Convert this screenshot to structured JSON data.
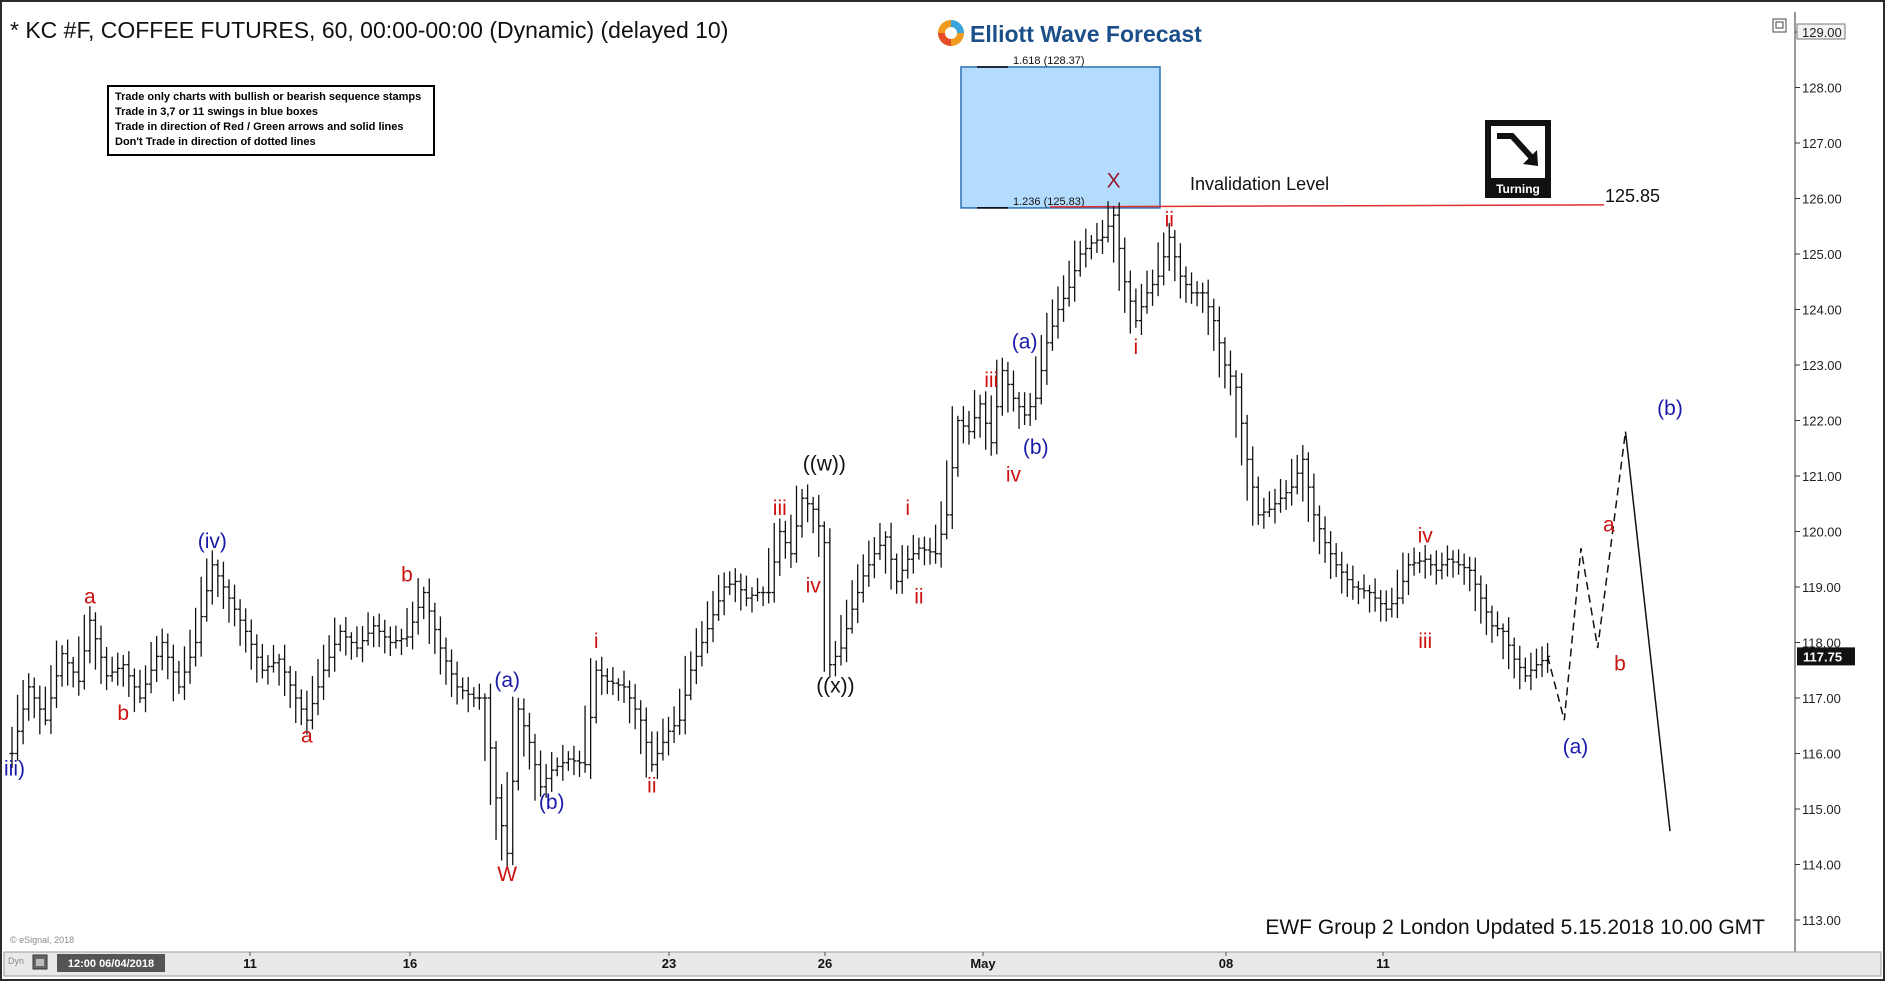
{
  "header": {
    "title": "* KC #F, COFFEE FUTURES, 60, 00:00-00:00 (Dynamic) (delayed 10)"
  },
  "brand": {
    "name": "Elliott Wave Forecast"
  },
  "rules_box": {
    "lines": [
      "Trade only charts with bullish or bearish sequence stamps",
      "Trade in 3,7 or 11 swings in blue boxes",
      "Trade in direction of Red / Green arrows and solid lines",
      "Don't Trade in direction of dotted lines"
    ]
  },
  "stamp": {
    "label": "Turning"
  },
  "footer": {
    "updated": "EWF Group 2 London Updated 5.15.2018 10.00 GMT",
    "esignal": "© eSignal, 2018",
    "dyn": "Dyn",
    "date_tag": "12:00 06/04/2018"
  },
  "colors": {
    "red_label": "#cc1111",
    "blue_label": "#1a1aaa",
    "black_label": "#111111",
    "box_fill": "#b3dcff",
    "box_stroke": "#2a6fb0",
    "invalidation_line": "#e03030",
    "bars": "#111111"
  },
  "chart_data": {
    "type": "ohlc-bar",
    "timeframe": "60",
    "ylim": [
      113.0,
      129.0
    ],
    "yticks": [
      113.0,
      114.0,
      115.0,
      116.0,
      117.0,
      118.0,
      119.0,
      120.0,
      121.0,
      122.0,
      123.0,
      124.0,
      125.0,
      126.0,
      127.0,
      128.0,
      129.0
    ],
    "ytick_labels": [
      "113.00",
      "114.00",
      "115.00",
      "116.00",
      "117.00",
      "118.00",
      "119.00",
      "120.00",
      "121.00",
      "122.00",
      "123.00",
      "124.00",
      "125.00",
      "126.00",
      "127.00",
      "128.00",
      "129.00"
    ],
    "xtick_labels": [
      "11",
      "16",
      "23",
      "26",
      "May",
      "08",
      "11"
    ],
    "last_price": "117.75",
    "invalidation": {
      "label": "Invalidation Level",
      "value": 125.85,
      "value_label": "125.85"
    },
    "blue_box": {
      "low": 125.83,
      "high": 128.37,
      "fib_low_label": "1.236 (125.83)",
      "fib_high_label": "1.618 (128.37)"
    },
    "price_path": [
      [
        0,
        116.0
      ],
      [
        3,
        117.2
      ],
      [
        6,
        116.6
      ],
      [
        9,
        117.8
      ],
      [
        12,
        117.3
      ],
      [
        14,
        118.4
      ],
      [
        17,
        117.4
      ],
      [
        20,
        117.6
      ],
      [
        23,
        117.0
      ],
      [
        27,
        118.0
      ],
      [
        30,
        117.2
      ],
      [
        33,
        118.0
      ],
      [
        36,
        119.4
      ],
      [
        39,
        118.8
      ],
      [
        42,
        118.2
      ],
      [
        45,
        117.5
      ],
      [
        48,
        117.7
      ],
      [
        51,
        117.0
      ],
      [
        53,
        116.6
      ],
      [
        56,
        117.5
      ],
      [
        59,
        118.2
      ],
      [
        62,
        117.9
      ],
      [
        65,
        118.3
      ],
      [
        68,
        118.0
      ],
      [
        71,
        118.1
      ],
      [
        74,
        118.9
      ],
      [
        77,
        117.9
      ],
      [
        80,
        117.2
      ],
      [
        83,
        117.0
      ],
      [
        85,
        117.0
      ],
      [
        87,
        115.2
      ],
      [
        89,
        114.2
      ],
      [
        91,
        116.8
      ],
      [
        93,
        116.2
      ],
      [
        95,
        115.4
      ],
      [
        97,
        115.7
      ],
      [
        100,
        115.9
      ],
      [
        103,
        115.8
      ],
      [
        105,
        117.5
      ],
      [
        107,
        117.3
      ],
      [
        110,
        117.2
      ],
      [
        113,
        116.6
      ],
      [
        115,
        115.8
      ],
      [
        118,
        116.4
      ],
      [
        120,
        116.6
      ],
      [
        122,
        117.5
      ],
      [
        124,
        118.0
      ],
      [
        126,
        118.5
      ],
      [
        128,
        119.0
      ],
      [
        130,
        119.1
      ],
      [
        132,
        118.8
      ],
      [
        134,
        118.9
      ],
      [
        136,
        118.9
      ],
      [
        138,
        120.0
      ],
      [
        140,
        119.6
      ],
      [
        142,
        120.6
      ],
      [
        144,
        120.4
      ],
      [
        146,
        119.8
      ],
      [
        147,
        117.6
      ],
      [
        149,
        117.9
      ],
      [
        151,
        118.6
      ],
      [
        153,
        119.2
      ],
      [
        155,
        119.6
      ],
      [
        157,
        119.9
      ],
      [
        159,
        119.1
      ],
      [
        161,
        119.5
      ],
      [
        163,
        119.7
      ],
      [
        166,
        119.6
      ],
      [
        168,
        120.3
      ],
      [
        170,
        122.0
      ],
      [
        172,
        121.8
      ],
      [
        174,
        122.3
      ],
      [
        176,
        121.6
      ],
      [
        178,
        122.9
      ],
      [
        180,
        122.4
      ],
      [
        182,
        122.1
      ],
      [
        184,
        122.4
      ],
      [
        186,
        123.4
      ],
      [
        188,
        124.0
      ],
      [
        190,
        124.4
      ],
      [
        192,
        125.0
      ],
      [
        194,
        125.2
      ],
      [
        196,
        125.3
      ],
      [
        198,
        125.7
      ],
      [
        200,
        124.5
      ],
      [
        202,
        123.8
      ],
      [
        204,
        124.3
      ],
      [
        206,
        124.6
      ],
      [
        208,
        125.3
      ],
      [
        210,
        124.6
      ],
      [
        212,
        124.3
      ],
      [
        214,
        124.3
      ],
      [
        216,
        123.8
      ],
      [
        218,
        123.0
      ],
      [
        220,
        122.6
      ],
      [
        222,
        121.3
      ],
      [
        224,
        120.3
      ],
      [
        226,
        120.4
      ],
      [
        228,
        120.6
      ],
      [
        230,
        120.8
      ],
      [
        232,
        121.3
      ],
      [
        234,
        120.3
      ],
      [
        236,
        119.8
      ],
      [
        238,
        119.4
      ],
      [
        241,
        119.0
      ],
      [
        244,
        118.9
      ],
      [
        247,
        118.6
      ],
      [
        249,
        118.8
      ],
      [
        251,
        119.4
      ],
      [
        254,
        119.5
      ],
      [
        256,
        119.3
      ],
      [
        258,
        119.5
      ],
      [
        260,
        119.4
      ],
      [
        262,
        119.3
      ],
      [
        264,
        118.8
      ],
      [
        266,
        118.3
      ],
      [
        268,
        118.2
      ],
      [
        270,
        117.7
      ],
      [
        272,
        117.4
      ],
      [
        274,
        117.6
      ],
      [
        276,
        117.75
      ]
    ],
    "projection": {
      "dashed": [
        [
          276,
          117.75
        ],
        [
          279,
          116.6
        ],
        [
          282,
          119.7
        ],
        [
          285,
          117.9
        ],
        [
          290,
          121.8
        ]
      ],
      "solid": [
        [
          290,
          121.8
        ],
        [
          298,
          114.6
        ]
      ]
    },
    "wave_labels": [
      {
        "text": "iii)",
        "x": 0.5,
        "y": 115.6,
        "color": "blue"
      },
      {
        "text": "a",
        "x": 14,
        "y": 118.7,
        "color": "red"
      },
      {
        "text": "b",
        "x": 20,
        "y": 116.6,
        "color": "red"
      },
      {
        "text": "(iv)",
        "x": 36,
        "y": 119.7,
        "color": "blue"
      },
      {
        "text": "a",
        "x": 53,
        "y": 116.2,
        "color": "red"
      },
      {
        "text": "b",
        "x": 71,
        "y": 119.1,
        "color": "red"
      },
      {
        "text": "(a)",
        "x": 89,
        "y": 117.2,
        "color": "blue"
      },
      {
        "text": "W",
        "x": 89,
        "y": 113.7,
        "color": "red"
      },
      {
        "text": "(b)",
        "x": 97,
        "y": 115.0,
        "color": "blue"
      },
      {
        "text": "i",
        "x": 105,
        "y": 117.9,
        "color": "red"
      },
      {
        "text": "ii",
        "x": 115,
        "y": 115.3,
        "color": "red"
      },
      {
        "text": "iii",
        "x": 138,
        "y": 120.3,
        "color": "red"
      },
      {
        "text": "iv",
        "x": 144,
        "y": 118.9,
        "color": "red"
      },
      {
        "text": "((w))",
        "x": 146,
        "y": 121.1,
        "color": "black"
      },
      {
        "text": "((x))",
        "x": 148,
        "y": 117.1,
        "color": "black"
      },
      {
        "text": "i",
        "x": 161,
        "y": 120.3,
        "color": "red"
      },
      {
        "text": "ii",
        "x": 163,
        "y": 118.7,
        "color": "red"
      },
      {
        "text": "iii",
        "x": 176,
        "y": 122.6,
        "color": "red"
      },
      {
        "text": "iv",
        "x": 180,
        "y": 120.9,
        "color": "red"
      },
      {
        "text": "(a)",
        "x": 182,
        "y": 123.3,
        "color": "blue"
      },
      {
        "text": "(b)",
        "x": 184,
        "y": 121.4,
        "color": "blue"
      },
      {
        "text": "X",
        "x": 198,
        "y": 126.2,
        "color": "darkred"
      },
      {
        "text": "i",
        "x": 202,
        "y": 123.2,
        "color": "red"
      },
      {
        "text": "ii",
        "x": 208,
        "y": 125.5,
        "color": "red"
      },
      {
        "text": "iv",
        "x": 254,
        "y": 119.8,
        "color": "red"
      },
      {
        "text": "iii",
        "x": 254,
        "y": 117.9,
        "color": "red"
      },
      {
        "text": "(a)",
        "x": 281,
        "y": 116.0,
        "color": "blue"
      },
      {
        "text": "a",
        "x": 287,
        "y": 120.0,
        "color": "red"
      },
      {
        "text": "b",
        "x": 289,
        "y": 117.5,
        "color": "red"
      },
      {
        "text": "(b)",
        "x": 298,
        "y": 122.1,
        "color": "blue"
      }
    ]
  }
}
